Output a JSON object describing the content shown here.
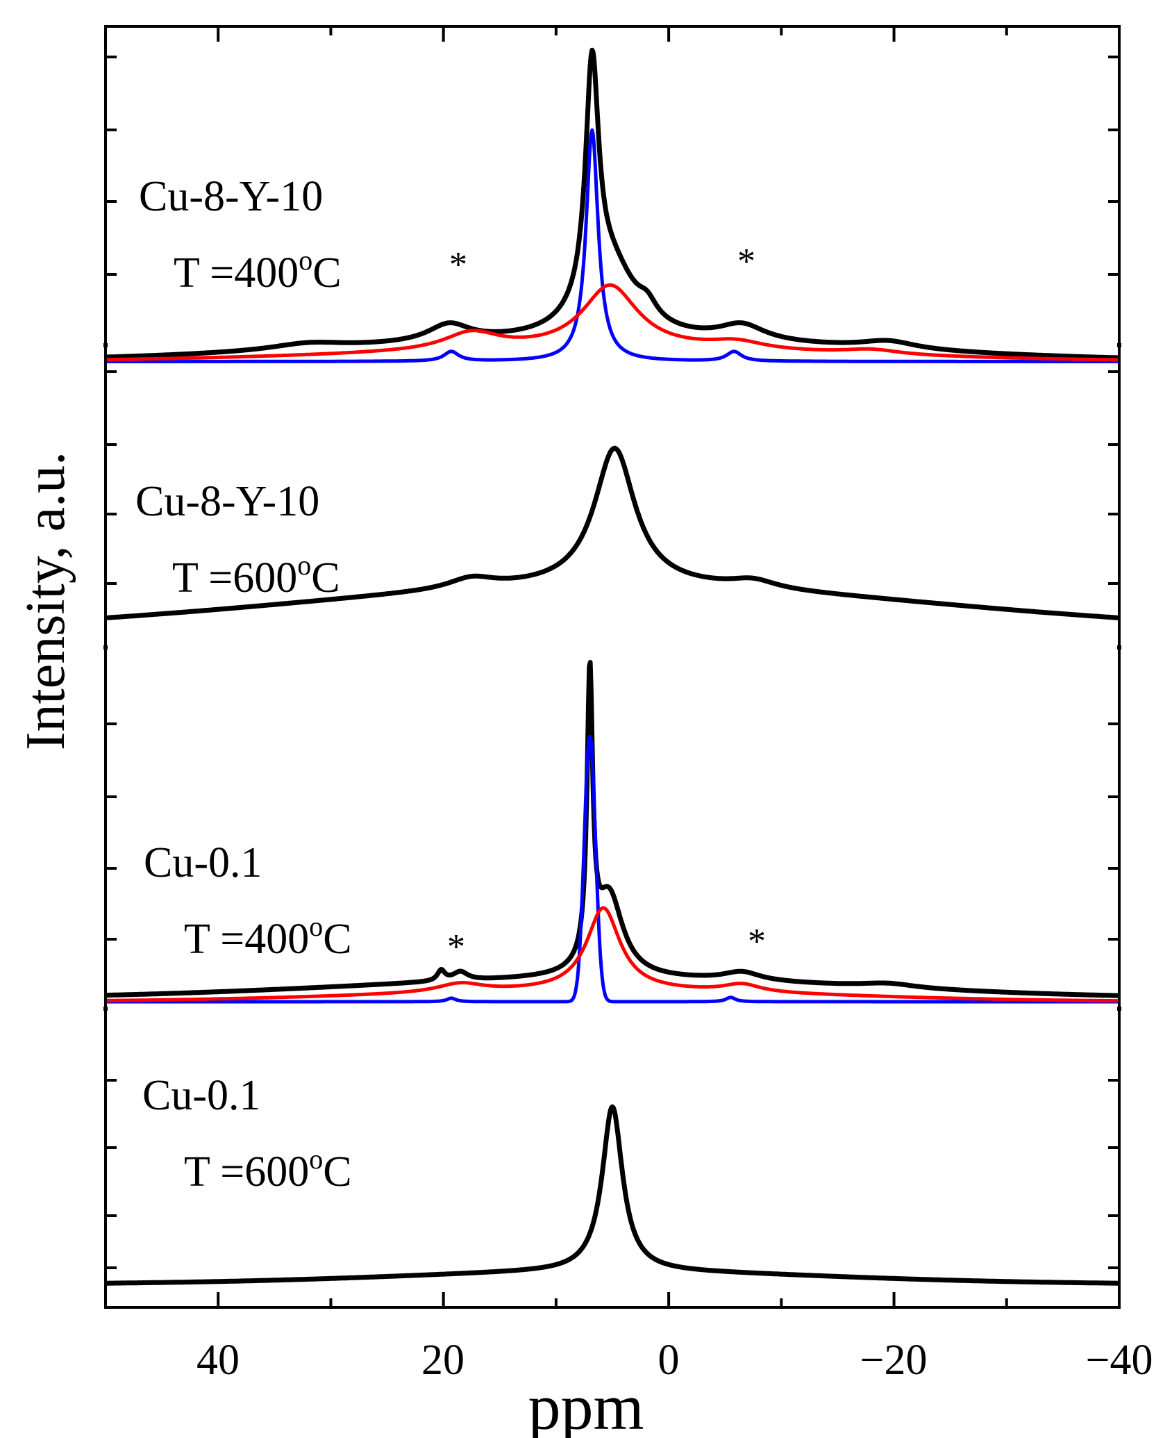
{
  "chart_data": {
    "type": "line",
    "title": "",
    "xlabel": "ppm",
    "ylabel": "Intensity, a.u.",
    "xlim": [
      50,
      -40
    ],
    "x_ticks": [
      40,
      30,
      20,
      10,
      0,
      -10,
      -20,
      -30,
      -40
    ],
    "x_tick_labels": [
      "40",
      "",
      "20",
      "",
      "0",
      "",
      "−20",
      "",
      "−40"
    ],
    "grid": false,
    "legend": "none",
    "colors": {
      "total": "#000000",
      "narrow": "#0000ff",
      "broad": "#ff0000"
    },
    "panels": [
      {
        "id": "cu8y10-400",
        "label_sample": "Cu-8-Y-10",
        "label_temp": "T =400",
        "label_sup": "o",
        "label_unit": "C",
        "annotations": [
          "*",
          "*"
        ],
        "ylim": [
          -0.1,
          4.2
        ],
        "series": [
          {
            "name": "total",
            "color": "#000000",
            "width": 7,
            "components": [
              {
                "type": "lor",
                "c": 6.8,
                "h": 2.95,
                "w": 0.7
              },
              {
                "type": "lor",
                "c": 5.2,
                "h": 0.9,
                "w": 2.8
              },
              {
                "type": "lor",
                "c": 1.9,
                "h": 0.18,
                "w": 1.0
              },
              {
                "type": "lor",
                "c": 19.5,
                "h": 0.22,
                "w": 2.3
              },
              {
                "type": "lor",
                "c": -6.5,
                "h": 0.2,
                "w": 2.5
              },
              {
                "type": "lor",
                "c": -19.5,
                "h": 0.1,
                "w": 3.0
              },
              {
                "type": "lor",
                "c": 32.0,
                "h": 0.08,
                "w": 4.0
              },
              {
                "type": "gau",
                "c": 6.0,
                "h": 0.25,
                "w": 24.0
              }
            ]
          },
          {
            "name": "narrow-component",
            "color": "#0000ff",
            "width": 5,
            "components": [
              {
                "type": "lor",
                "c": 6.8,
                "h": 2.9,
                "w": 0.65
              },
              {
                "type": "lor",
                "c": 19.3,
                "h": 0.12,
                "w": 0.8
              },
              {
                "type": "lor",
                "c": -5.8,
                "h": 0.12,
                "w": 0.8
              }
            ]
          },
          {
            "name": "broad-component",
            "color": "#ff0000",
            "width": 5,
            "components": [
              {
                "type": "lor",
                "c": 5.2,
                "h": 0.8,
                "w": 3.0
              },
              {
                "type": "lor",
                "c": 17.5,
                "h": 0.22,
                "w": 3.0
              },
              {
                "type": "lor",
                "c": -6.0,
                "h": 0.1,
                "w": 3.0
              },
              {
                "type": "lor",
                "c": -18.0,
                "h": 0.06,
                "w": 3.0
              },
              {
                "type": "gau",
                "c": 6.0,
                "h": 0.14,
                "w": 22.0
              }
            ]
          }
        ]
      },
      {
        "id": "cu8y10-600",
        "label_sample": "Cu-8-Y-10",
        "label_temp": "T =600",
        "label_sup": "o",
        "label_unit": "C",
        "annotations": [],
        "ylim": [
          -0.1,
          3.9
        ],
        "series": [
          {
            "name": "total",
            "color": "#000000",
            "width": 7,
            "components": [
              {
                "type": "lor",
                "c": 4.8,
                "h": 1.95,
                "w": 2.2
              },
              {
                "type": "lor",
                "c": 17.5,
                "h": 0.15,
                "w": 2.5
              },
              {
                "type": "lor",
                "c": -7.5,
                "h": 0.12,
                "w": 2.5
              },
              {
                "type": "gau",
                "c": 5.0,
                "h": 0.55,
                "w": 28.0
              },
              {
                "type": "gau",
                "c": 5.0,
                "h": 0.28,
                "w": 80.0
              }
            ]
          }
        ]
      },
      {
        "id": "cu01-400",
        "label_sample": "Cu-0.1",
        "label_temp": "T =400",
        "label_sup": "o",
        "label_unit": "C",
        "annotations": [
          "*",
          "*"
        ],
        "ylim": [
          -0.08,
          4.0
        ],
        "series": [
          {
            "name": "total",
            "color": "#000000",
            "width": 7,
            "components": [
              {
                "type": "lor",
                "c": 7.0,
                "h": 3.25,
                "w": 0.3
              },
              {
                "type": "lor",
                "c": 5.3,
                "h": 0.95,
                "w": 1.5
              },
              {
                "type": "lor",
                "c": 20.2,
                "h": 0.12,
                "w": 0.4
              },
              {
                "type": "lor",
                "c": 18.5,
                "h": 0.1,
                "w": 0.8
              },
              {
                "type": "lor",
                "c": -6.5,
                "h": 0.1,
                "w": 2.0
              },
              {
                "type": "lor",
                "c": -19.5,
                "h": 0.05,
                "w": 3.0
              },
              {
                "type": "gau",
                "c": 6.0,
                "h": 0.2,
                "w": 22.0
              },
              {
                "type": "gau",
                "c": 6.0,
                "h": 0.06,
                "w": 60.0
              }
            ]
          },
          {
            "name": "narrow-component",
            "color": "#0000ff",
            "width": 5,
            "components": [
              {
                "type": "gau",
                "c": 7.0,
                "h": 3.05,
                "w": 0.5
              },
              {
                "type": "lor",
                "c": 19.3,
                "h": 0.04,
                "w": 0.5
              },
              {
                "type": "lor",
                "c": -5.5,
                "h": 0.05,
                "w": 0.5
              }
            ]
          },
          {
            "name": "broad-component",
            "color": "#ff0000",
            "width": 5,
            "components": [
              {
                "type": "lor",
                "c": 5.8,
                "h": 0.95,
                "w": 1.8
              },
              {
                "type": "lor",
                "c": 18.5,
                "h": 0.1,
                "w": 2.5
              },
              {
                "type": "lor",
                "c": -6.5,
                "h": 0.09,
                "w": 2.0
              },
              {
                "type": "gau",
                "c": 6.0,
                "h": 0.12,
                "w": 20.0
              }
            ]
          }
        ]
      },
      {
        "id": "cu01-600",
        "label_sample": "Cu-0.1",
        "label_temp": "T =600",
        "label_sup": "o",
        "label_unit": "C",
        "annotations": [],
        "ylim": [
          -0.15,
          3.2
        ],
        "series": [
          {
            "name": "total",
            "color": "#000000",
            "width": 7,
            "components": [
              {
                "type": "lor",
                "c": 5.0,
                "h": 1.85,
                "w": 1.1
              },
              {
                "type": "gau",
                "c": 5.0,
                "h": 0.12,
                "w": 18.0
              },
              {
                "type": "gau",
                "c": 5.0,
                "h": 0.13,
                "w": 90.0
              }
            ]
          }
        ]
      }
    ]
  }
}
